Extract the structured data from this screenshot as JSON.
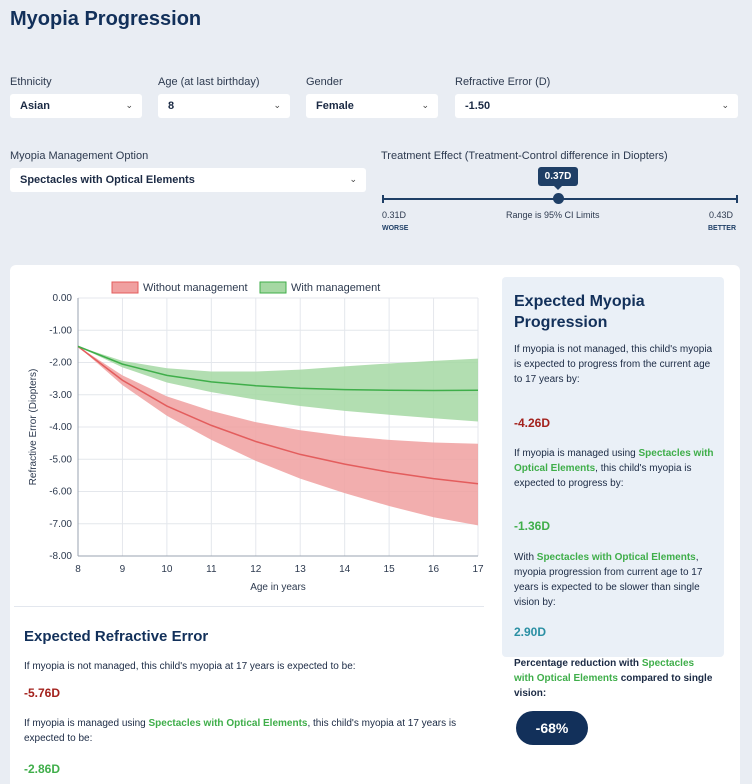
{
  "page": {
    "title": "Myopia Progression"
  },
  "form": {
    "ethnicity": {
      "label": "Ethnicity",
      "value": "Asian"
    },
    "age": {
      "label": "Age (at last birthday)",
      "value": "8"
    },
    "gender": {
      "label": "Gender",
      "value": "Female"
    },
    "refractive_error": {
      "label": "Refractive Error (D)",
      "value": "-1.50"
    },
    "management": {
      "label": "Myopia Management Option",
      "value": "Spectacles with Optical Elements"
    },
    "treatment": {
      "label": "Treatment Effect (Treatment-Control difference in Diopters)",
      "value_label": "0.37D",
      "value": 0.37,
      "min": 0.31,
      "max": 0.43,
      "min_label": "0.31D",
      "max_label": "0.43D",
      "min_caption": "WORSE",
      "max_caption": "BETTER",
      "range_note": "Range is 95% CI Limits"
    }
  },
  "chart_data": {
    "type": "area",
    "xlabel": "Age in years",
    "ylabel": "Refractive Error (Diopters)",
    "x": [
      8,
      9,
      10,
      11,
      12,
      13,
      14,
      15,
      16,
      17
    ],
    "xlim": [
      8,
      17
    ],
    "ylim": [
      -8,
      0
    ],
    "yticks": [
      "0.00",
      "-1.00",
      "-2.00",
      "-3.00",
      "-4.00",
      "-5.00",
      "-6.00",
      "-7.00",
      "-8.00"
    ],
    "xticks": [
      "8",
      "9",
      "10",
      "11",
      "12",
      "13",
      "14",
      "15",
      "16",
      "17"
    ],
    "grid": true,
    "legend": "top",
    "series": [
      {
        "name": "Without management",
        "color": "#e35d5d",
        "fill": "#f0a0a0",
        "values": [
          -1.5,
          -2.55,
          -3.35,
          -3.95,
          -4.45,
          -4.85,
          -5.15,
          -5.4,
          -5.6,
          -5.76
        ],
        "upper": [
          -1.5,
          -2.4,
          -3.05,
          -3.5,
          -3.85,
          -4.1,
          -4.28,
          -4.4,
          -4.48,
          -4.52
        ],
        "lower": [
          -1.5,
          -2.7,
          -3.65,
          -4.4,
          -5.05,
          -5.6,
          -6.05,
          -6.45,
          -6.8,
          -7.05
        ]
      },
      {
        "name": "With management",
        "color": "#3fae4a",
        "fill": "#a5d8a3",
        "values": [
          -1.5,
          -2.05,
          -2.4,
          -2.6,
          -2.72,
          -2.8,
          -2.84,
          -2.86,
          -2.87,
          -2.86
        ],
        "upper": [
          -1.5,
          -1.95,
          -2.18,
          -2.28,
          -2.28,
          -2.22,
          -2.12,
          -2.03,
          -1.95,
          -1.88
        ],
        "lower": [
          -1.5,
          -2.15,
          -2.62,
          -2.92,
          -3.15,
          -3.35,
          -3.5,
          -3.62,
          -3.73,
          -3.83
        ]
      }
    ]
  },
  "summary": {
    "title": "Expected Myopia Progression",
    "p1": "If myopia is not managed, this child's myopia is expected to progress from the current age to 17 years by:",
    "v1": "-4.26D",
    "p2_pre": "If myopia is managed using ",
    "p2_link": "Spectacles with Optical Elements",
    "p2_post": ", this child's myopia is expected to progress by:",
    "v2": "-1.36D",
    "p3_pre": "With ",
    "p3_link": "Spectacles with Optical Elements",
    "p3_post": ", myopia progression from current age to 17 years is expected to be slower than single vision by:",
    "v3": "2.90D",
    "p4_pre": "Percentage reduction with ",
    "p4_link": "Spectacles with Optical Elements",
    "p4_post": " compared to single vision:",
    "v4": "-68%"
  },
  "refractive": {
    "title": "Expected Refractive Error",
    "p1": "If myopia is not managed, this child's myopia at 17 years is expected to be:",
    "v1": "-5.76D",
    "p2_pre": "If myopia is managed using ",
    "p2_link": "Spectacles with Optical Elements",
    "p2_post": ", this child's myopia at 17 years is expected to be:",
    "v2": "-2.86D"
  }
}
